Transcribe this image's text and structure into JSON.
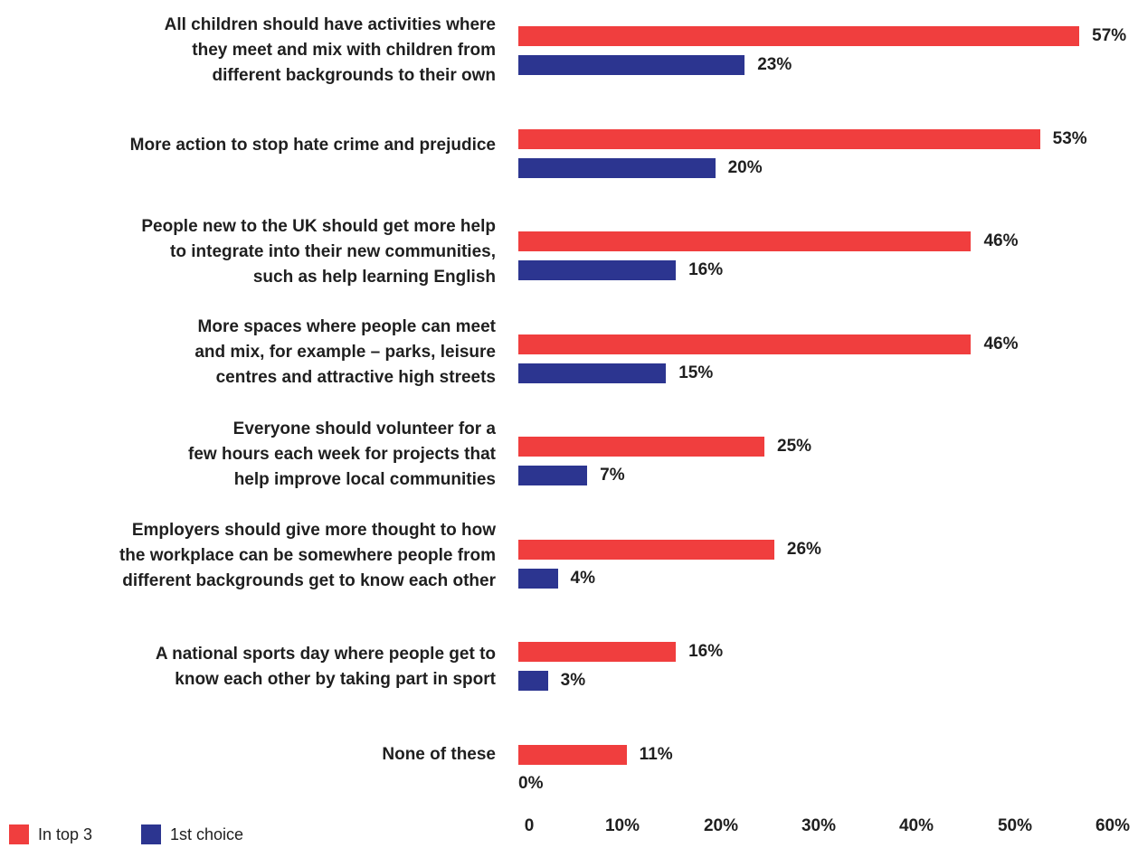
{
  "colors": {
    "top3": "#f03e3e",
    "first": "#2c3590"
  },
  "legend": [
    {
      "name": "In top 3",
      "color": "#f03e3e"
    },
    {
      "name": "1st choice",
      "color": "#2c3590"
    }
  ],
  "chart_data": {
    "type": "bar",
    "orientation": "horizontal",
    "title": "",
    "xlabel": "",
    "ylabel": "",
    "xlim": [
      0,
      60
    ],
    "ticks": [
      "0",
      "10%",
      "20%",
      "30%",
      "40%",
      "50%",
      "60%"
    ],
    "grid": false,
    "legend_position": "bottom-left",
    "categories": [
      [
        "All children should have activities where",
        "they meet and mix with children from",
        "different backgrounds to their own"
      ],
      [
        "More action to stop hate crime and prejudice"
      ],
      [
        "People new to the UK should get more help",
        "to integrate into their new communities,",
        "such as help learning English"
      ],
      [
        "More spaces where people can meet",
        "and mix, for example – parks, leisure",
        "centres and attractive high streets"
      ],
      [
        "Everyone should volunteer for a",
        "few hours each week for projects that",
        "help improve local communities"
      ],
      [
        "Employers should give more thought to how",
        "the workplace can be somewhere people from",
        "different backgrounds get to know each other"
      ],
      [
        "A national sports day where people get to",
        "know each other by taking part in sport"
      ],
      [
        "None of these"
      ]
    ],
    "series": [
      {
        "name": "In top 3",
        "values": [
          57,
          53,
          46,
          46,
          25,
          26,
          16,
          11
        ],
        "labels": [
          "57%",
          "53%",
          "46%",
          "46%",
          "25%",
          "26%",
          "16%",
          "11%"
        ]
      },
      {
        "name": "1st choice",
        "values": [
          23,
          20,
          16,
          15,
          7,
          4,
          3,
          0
        ],
        "labels": [
          "23%",
          "20%",
          "16%",
          "15%",
          "7%",
          "4%",
          "3%",
          "0%"
        ]
      }
    ]
  }
}
